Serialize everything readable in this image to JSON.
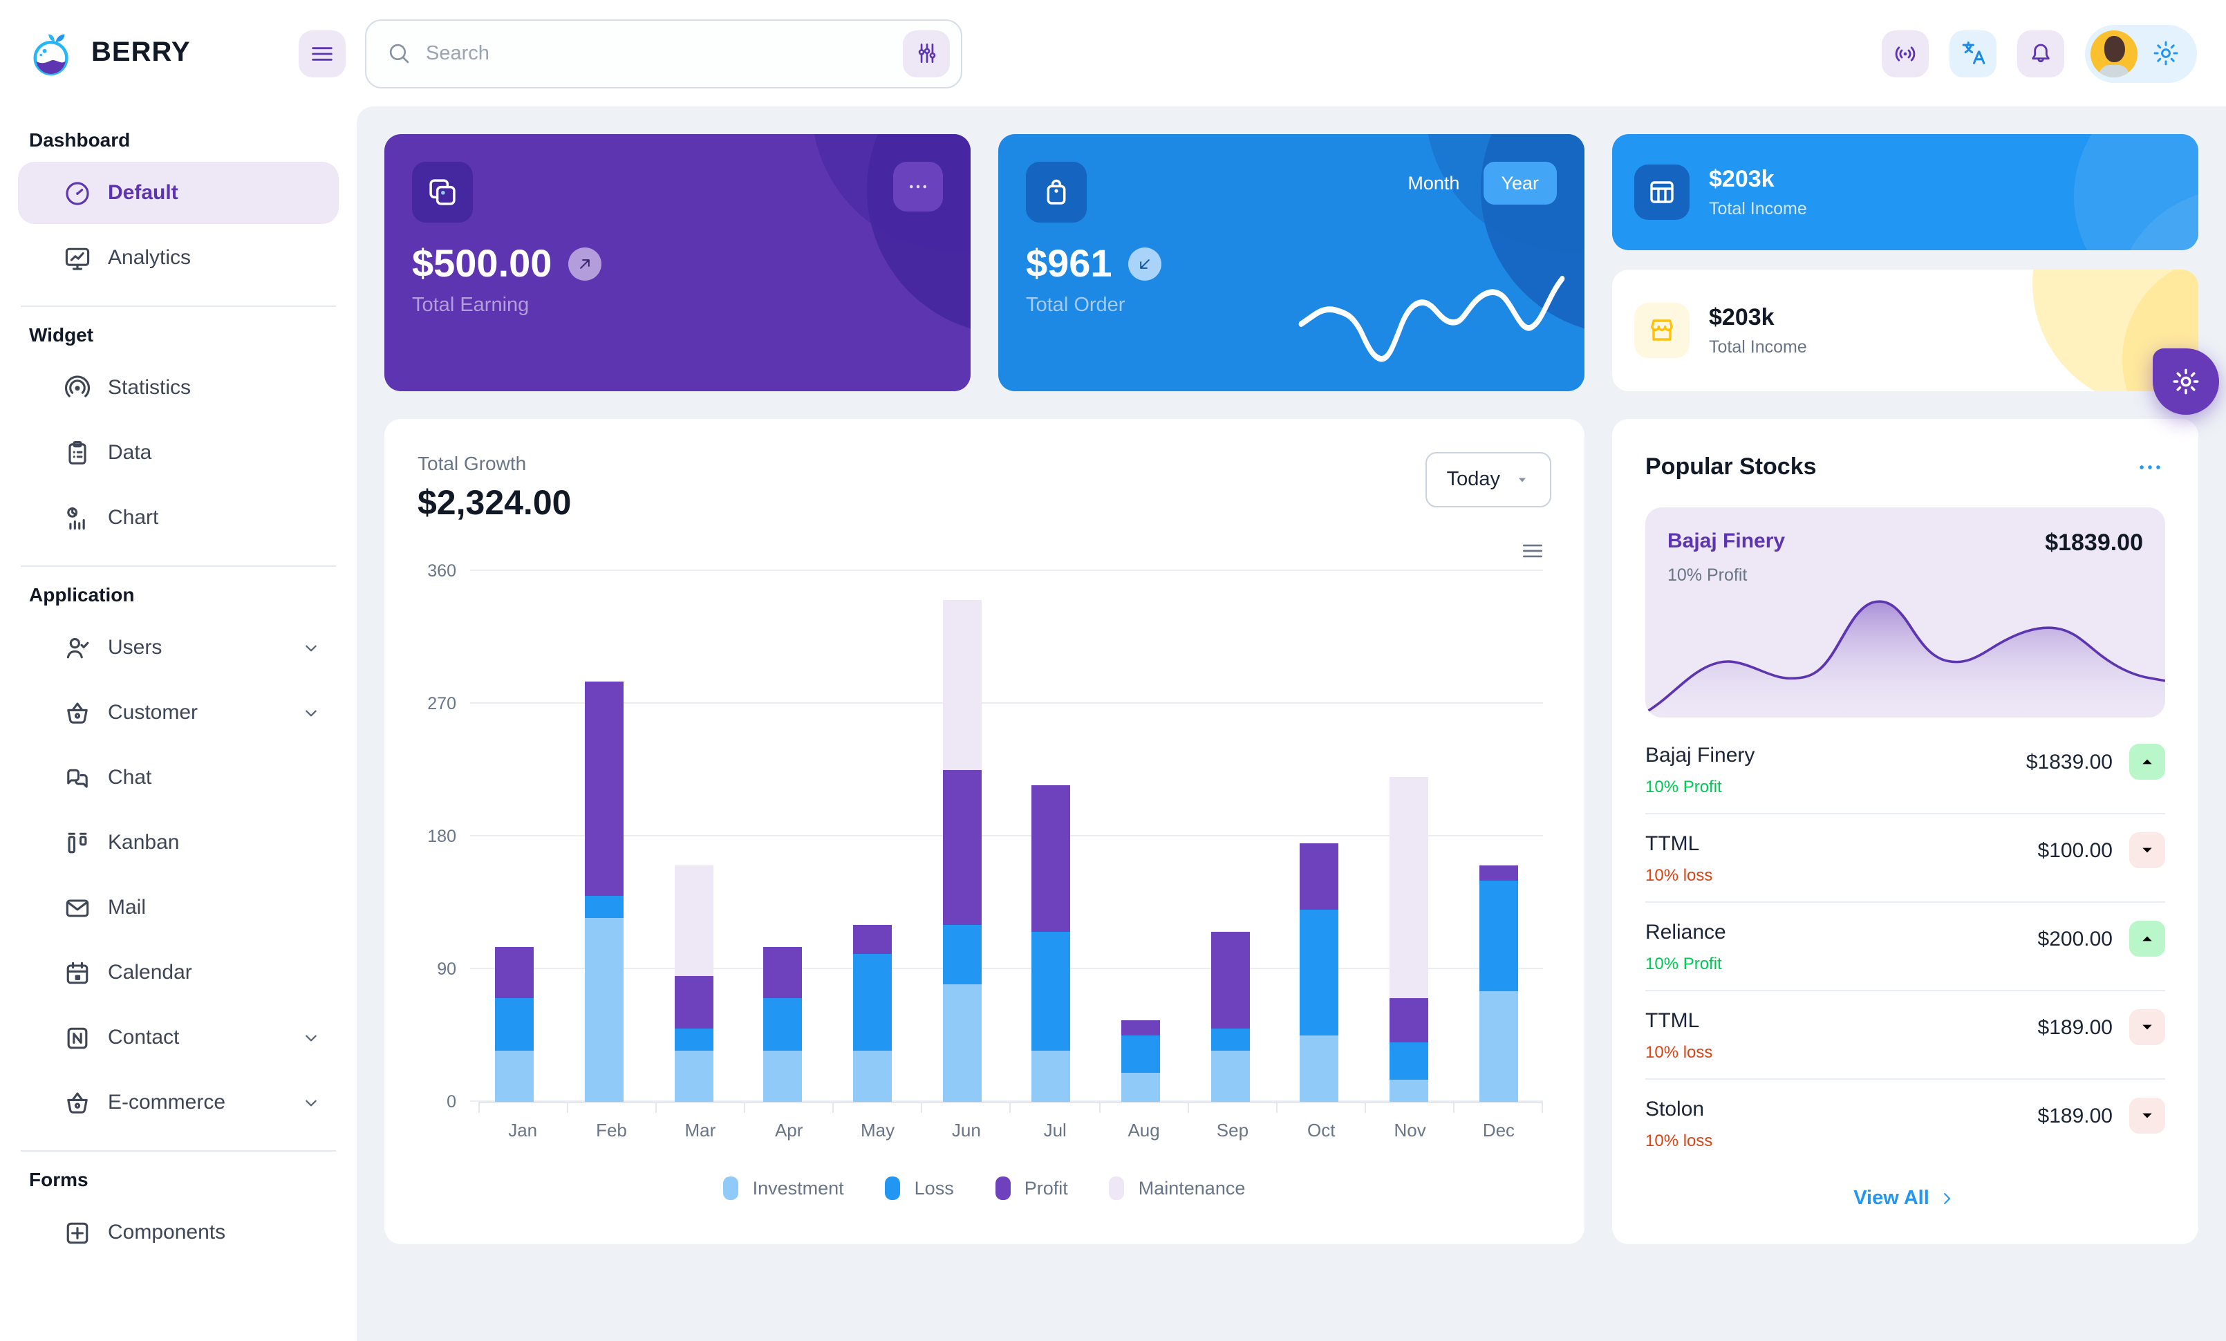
{
  "app": {
    "brand": "BERRY"
  },
  "header": {
    "search": {
      "placeholder": "Search"
    }
  },
  "sidebar": {
    "sections": [
      {
        "title": "Dashboard",
        "items": [
          {
            "label": "Default",
            "icon": "dashboard-gauge-icon",
            "active": true
          },
          {
            "label": "Analytics",
            "icon": "analytics-icon"
          }
        ]
      },
      {
        "title": "Widget",
        "items": [
          {
            "label": "Statistics",
            "icon": "statistics-icon"
          },
          {
            "label": "Data",
            "icon": "data-icon"
          },
          {
            "label": "Chart",
            "icon": "chart-icon"
          }
        ]
      },
      {
        "title": "Application",
        "items": [
          {
            "label": "Users",
            "icon": "users-icon",
            "expandable": true
          },
          {
            "label": "Customer",
            "icon": "customer-icon",
            "expandable": true
          },
          {
            "label": "Chat",
            "icon": "chat-icon"
          },
          {
            "label": "Kanban",
            "icon": "kanban-icon"
          },
          {
            "label": "Mail",
            "icon": "mail-icon"
          },
          {
            "label": "Calendar",
            "icon": "calendar-icon"
          },
          {
            "label": "Contact",
            "icon": "contact-icon",
            "expandable": true
          },
          {
            "label": "E-commerce",
            "icon": "ecommerce-icon",
            "expandable": true
          }
        ]
      },
      {
        "title": "Forms",
        "items": [
          {
            "label": "Components",
            "icon": "components-icon"
          }
        ]
      }
    ]
  },
  "cards": {
    "earning": {
      "value": "$500.00",
      "label": "Total Earning"
    },
    "order": {
      "value": "$961",
      "label": "Total Order",
      "toggle": {
        "options": [
          "Month",
          "Year"
        ],
        "selected": "Year"
      }
    },
    "income_primary": {
      "value": "$203k",
      "label": "Total Income"
    },
    "income_warning": {
      "value": "$203k",
      "label": "Total Income"
    }
  },
  "growth": {
    "label": "Total Growth",
    "value": "$2,324.00",
    "period": "Today"
  },
  "chart_data": {
    "type": "bar",
    "stacked": true,
    "title": "Total Growth",
    "categories": [
      "Jan",
      "Feb",
      "Mar",
      "Apr",
      "May",
      "Jun",
      "Jul",
      "Aug",
      "Sep",
      "Oct",
      "Nov",
      "Dec"
    ],
    "series": [
      {
        "name": "Investment",
        "color": "#90caf9",
        "values": [
          35,
          125,
          35,
          35,
          35,
          80,
          35,
          20,
          35,
          45,
          15,
          75
        ]
      },
      {
        "name": "Loss",
        "color": "#2196f3",
        "values": [
          35,
          15,
          15,
          35,
          65,
          40,
          80,
          25,
          15,
          85,
          25,
          75
        ]
      },
      {
        "name": "Profit",
        "color": "#6f42bd",
        "values": [
          35,
          145,
          35,
          35,
          20,
          105,
          100,
          10,
          65,
          45,
          30,
          10
        ]
      },
      {
        "name": "Maintenance",
        "color": "#ede7f6",
        "values": [
          0,
          0,
          75,
          0,
          0,
          115,
          0,
          0,
          0,
          0,
          150,
          0
        ]
      }
    ],
    "xlabel": "",
    "ylabel": "",
    "ylim": [
      0,
      360
    ],
    "yticks": [
      0,
      90,
      180,
      270,
      360
    ],
    "grid": true,
    "legend_position": "bottom"
  },
  "stocks": {
    "title": "Popular Stocks",
    "featured": {
      "name": "Bajaj Finery",
      "change": "10% Profit",
      "price": "$1839.00"
    },
    "items": [
      {
        "name": "Bajaj Finery",
        "change": "10% Profit",
        "price": "$1839.00",
        "direction": "up"
      },
      {
        "name": "TTML",
        "change": "10% loss",
        "price": "$100.00",
        "direction": "down"
      },
      {
        "name": "Reliance",
        "change": "10% Profit",
        "price": "$200.00",
        "direction": "up"
      },
      {
        "name": "TTML",
        "change": "10% loss",
        "price": "$189.00",
        "direction": "down"
      },
      {
        "name": "Stolon",
        "change": "10% loss",
        "price": "$189.00",
        "direction": "down"
      }
    ],
    "view_all": "View All"
  },
  "colors": {
    "page_bg": "#eef2f6",
    "accent_purple": "#5e35b1",
    "accent_purple_dark": "#4527a0",
    "accent_blue": "#2196f3",
    "accent_blue_dark": "#1e88e5",
    "accent_blue_800": "#1565c0",
    "light_purple": "#ede7f6",
    "light_blue": "#e3f2fd",
    "success": "#00c853",
    "success_light": "#b9f6ca",
    "error": "#d84315",
    "error_light": "#fbe9e7",
    "warning": "#ffc107",
    "warning_light": "#fff8e1",
    "text_dark": "#121926",
    "text_gray": "#697586"
  }
}
